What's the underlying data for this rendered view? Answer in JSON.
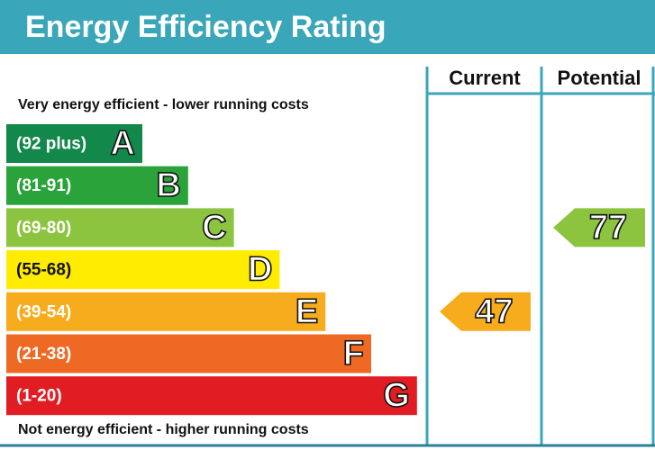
{
  "title": "Energy Efficiency Rating",
  "header": {
    "current": "Current",
    "potential": "Potential"
  },
  "top_note": "Very energy efficient - lower running costs",
  "bottom_note": "Not energy efficient - higher running costs",
  "rows": [
    {
      "range": "(92 plus)",
      "letter": "A",
      "color": "#12894a"
    },
    {
      "range": "(81-91)",
      "letter": "B",
      "color": "#2aa33a"
    },
    {
      "range": "(69-80)",
      "letter": "C",
      "color": "#8cc43f"
    },
    {
      "range": "(55-68)",
      "letter": "D",
      "color": "#ffec00"
    },
    {
      "range": "(39-54)",
      "letter": "E",
      "color": "#f6ac1c"
    },
    {
      "range": "(21-38)",
      "letter": "F",
      "color": "#ee6a24"
    },
    {
      "range": "(1-20)",
      "letter": "G",
      "color": "#e21c23"
    }
  ],
  "ratings": {
    "current": 47,
    "potential": 77
  }
}
